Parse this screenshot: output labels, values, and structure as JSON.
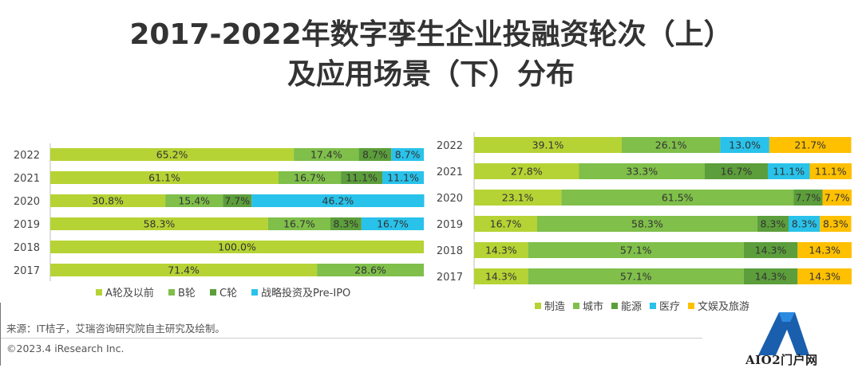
{
  "page": {
    "title_line1": "2017-2022年数字孪生企业投融资轮次（上）",
    "title_line2": "及应用场景（下）分布",
    "source": "来源：IT桔子，艾瑞咨询研究院自主研究及绘制。",
    "copyright": "©2023.4 iResearch Inc.",
    "watermark": "AIO2门户网"
  },
  "chart_data": [
    {
      "type": "bar",
      "orientation": "horizontal",
      "stacked": "percent",
      "categories": [
        "2022",
        "2021",
        "2020",
        "2019",
        "2018",
        "2017"
      ],
      "series": [
        {
          "name": "A轮及以前",
          "color": "#b5d334",
          "values": [
            65.2,
            61.1,
            30.8,
            58.3,
            100.0,
            71.4
          ]
        },
        {
          "name": "B轮",
          "color": "#7fbf4a",
          "values": [
            17.4,
            16.7,
            15.4,
            16.7,
            0,
            28.6
          ]
        },
        {
          "name": "C轮",
          "color": "#5c9e3b",
          "values": [
            8.7,
            11.1,
            7.7,
            8.3,
            0,
            0
          ]
        },
        {
          "name": "战略投资及Pre-IPO",
          "color": "#29c2ea",
          "values": [
            8.7,
            11.1,
            46.2,
            16.7,
            0,
            0
          ]
        }
      ],
      "legend_position": "bottom",
      "xlim": [
        0,
        100
      ]
    },
    {
      "type": "bar",
      "orientation": "horizontal",
      "stacked": "percent",
      "categories": [
        "2022",
        "2021",
        "2020",
        "2019",
        "2018",
        "2017"
      ],
      "series": [
        {
          "name": "制造",
          "color": "#b5d334",
          "values": [
            39.1,
            27.8,
            23.1,
            16.7,
            14.3,
            14.3
          ]
        },
        {
          "name": "城市",
          "color": "#7fbf4a",
          "values": [
            26.1,
            33.3,
            61.5,
            58.3,
            57.1,
            57.1
          ]
        },
        {
          "name": "能源",
          "color": "#5c9e3b",
          "values": [
            0,
            16.7,
            7.7,
            8.3,
            14.3,
            14.3
          ]
        },
        {
          "name": "医疗",
          "color": "#29c2ea",
          "values": [
            13.0,
            11.1,
            0,
            8.3,
            0,
            0
          ]
        },
        {
          "name": "文娱及旅游",
          "color": "#ffc000",
          "values": [
            21.7,
            11.1,
            7.7,
            8.3,
            14.3,
            14.3
          ]
        }
      ],
      "legend_position": "bottom",
      "xlim": [
        0,
        100
      ]
    }
  ]
}
